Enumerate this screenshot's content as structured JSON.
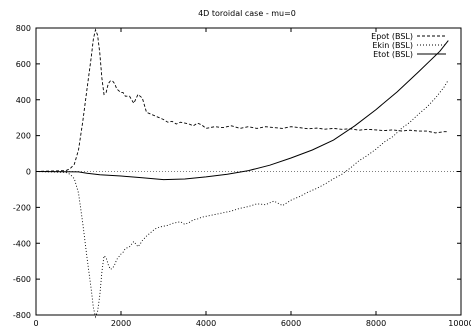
{
  "chart_data": {
    "type": "line",
    "title": "4D toroidal case - mu=0",
    "xlabel": "",
    "ylabel": "",
    "xlim": [
      0,
      10000
    ],
    "ylim": [
      -800,
      800
    ],
    "x_ticks": [
      0,
      2000,
      4000,
      6000,
      8000,
      10000
    ],
    "y_ticks": [
      -800,
      -600,
      -400,
      -200,
      0,
      200,
      400,
      600,
      800
    ],
    "legend_position": "top-right",
    "grid": false,
    "series": [
      {
        "name": "Epot (BSL)",
        "style": "dashed",
        "x": [
          0,
          700,
          800,
          900,
          1000,
          1100,
          1200,
          1300,
          1350,
          1400,
          1450,
          1500,
          1550,
          1600,
          1650,
          1700,
          1750,
          1800,
          1850,
          1900,
          1950,
          2000,
          2050,
          2100,
          2200,
          2300,
          2400,
          2450,
          2500,
          2600,
          2700,
          2800,
          2900,
          3000,
          3100,
          3200,
          3300,
          3400,
          3500,
          3600,
          3700,
          3800,
          3900,
          4000,
          4200,
          4400,
          4600,
          4800,
          5000,
          5200,
          5400,
          5600,
          5800,
          6000,
          6200,
          6400,
          6600,
          6800,
          7000,
          7200,
          7400,
          7600,
          7800,
          8000,
          8200,
          8400,
          8600,
          8800,
          9000,
          9200,
          9400,
          9600,
          9700
        ],
        "values": [
          0,
          5,
          15,
          40,
          120,
          280,
          460,
          640,
          740,
          790,
          760,
          660,
          520,
          430,
          440,
          490,
          505,
          505,
          490,
          460,
          450,
          440,
          440,
          420,
          420,
          380,
          430,
          420,
          410,
          330,
          320,
          310,
          300,
          290,
          275,
          280,
          265,
          275,
          270,
          265,
          255,
          270,
          260,
          240,
          250,
          245,
          255,
          240,
          250,
          240,
          250,
          245,
          240,
          250,
          245,
          238,
          242,
          236,
          240,
          235,
          238,
          230,
          235,
          232,
          228,
          232,
          226,
          230,
          225,
          225,
          215,
          222,
          222
        ]
      },
      {
        "name": "Ekin (BSL)",
        "style": "dotted",
        "x": [
          0,
          700,
          800,
          900,
          1000,
          1100,
          1200,
          1300,
          1350,
          1400,
          1450,
          1500,
          1550,
          1600,
          1650,
          1700,
          1750,
          1800,
          1850,
          1900,
          1950,
          2000,
          2050,
          2100,
          2200,
          2300,
          2400,
          2450,
          2500,
          2600,
          2700,
          2800,
          2900,
          3000,
          3100,
          3200,
          3300,
          3400,
          3500,
          3600,
          3700,
          3800,
          3900,
          4000,
          4200,
          4400,
          4600,
          4800,
          5000,
          5200,
          5400,
          5600,
          5800,
          6000,
          6200,
          6400,
          6600,
          6800,
          7000,
          7200,
          7400,
          7600,
          7800,
          8000,
          8200,
          8400,
          8600,
          8800,
          9000,
          9200,
          9400,
          9600,
          9700
        ],
        "values": [
          0,
          -5,
          -15,
          -40,
          -120,
          -290,
          -480,
          -660,
          -760,
          -810,
          -780,
          -690,
          -560,
          -470,
          -480,
          -520,
          -545,
          -540,
          -520,
          -490,
          -475,
          -460,
          -450,
          -430,
          -420,
          -390,
          -420,
          -405,
          -385,
          -360,
          -340,
          -320,
          -310,
          -305,
          -300,
          -290,
          -285,
          -280,
          -295,
          -285,
          -270,
          -265,
          -255,
          -250,
          -240,
          -230,
          -220,
          -205,
          -195,
          -180,
          -185,
          -165,
          -190,
          -160,
          -140,
          -115,
          -95,
          -70,
          -40,
          -15,
          20,
          60,
          90,
          125,
          165,
          195,
          240,
          275,
          320,
          360,
          410,
          470,
          510
        ]
      },
      {
        "name": "Etot (BSL)",
        "style": "solid",
        "x": [
          0,
          1000,
          1200,
          1500,
          2000,
          2500,
          3000,
          3500,
          4000,
          4500,
          5000,
          5500,
          6000,
          6500,
          7000,
          7500,
          8000,
          8500,
          9000,
          9500,
          9700
        ],
        "values": [
          0,
          -2,
          -10,
          -18,
          -25,
          -35,
          -45,
          -42,
          -30,
          -15,
          5,
          35,
          75,
          120,
          175,
          255,
          345,
          445,
          555,
          670,
          730
        ]
      }
    ]
  }
}
